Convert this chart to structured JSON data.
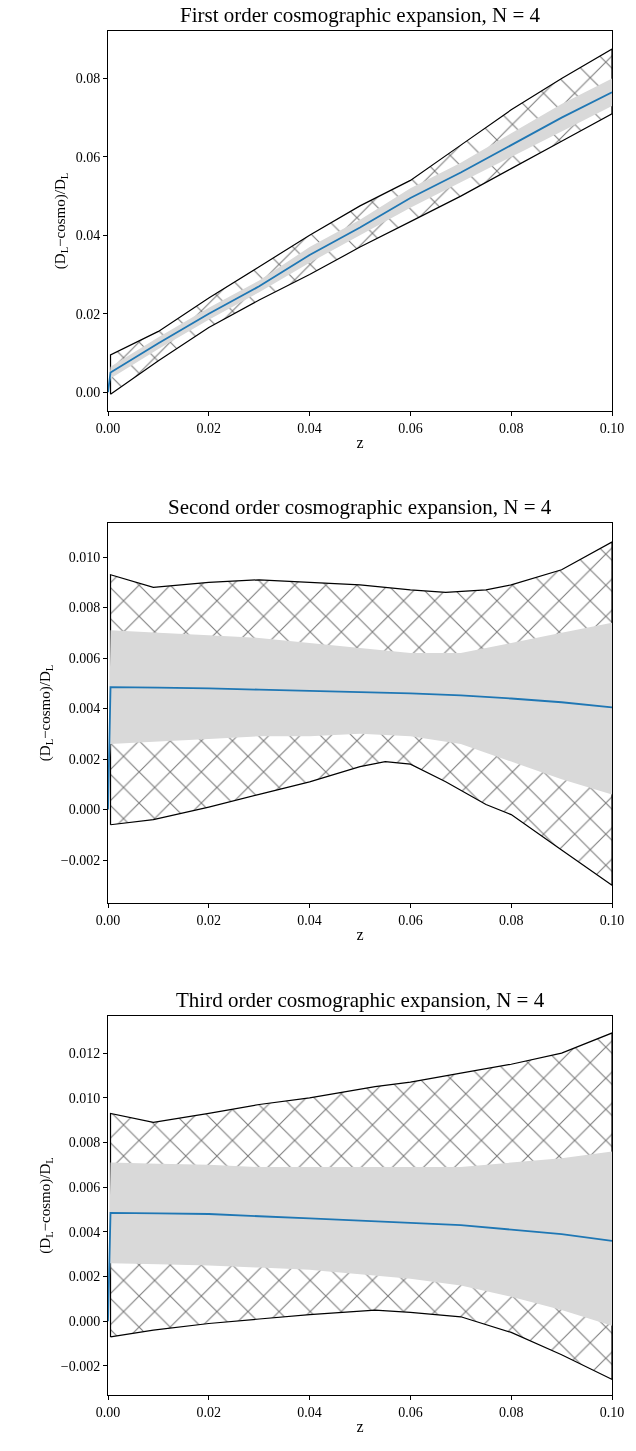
{
  "chart_data": [
    {
      "type": "line",
      "title": "First order cosmographic expansion, N = 4",
      "xlabel": "z",
      "ylabel": "(D$_{L}$−cosmo)/D$_{L}$",
      "xlim": [
        0,
        0.1
      ],
      "xticks": [
        {
          "value": 0,
          "label": "0.00"
        },
        {
          "value": 0.02,
          "label": "0.02"
        },
        {
          "value": 0.04,
          "label": "0.04"
        },
        {
          "value": 0.06,
          "label": "0.06"
        },
        {
          "value": 0.08,
          "label": "0.08"
        },
        {
          "value": 0.1,
          "label": "0.10"
        }
      ],
      "ylim": [
        -0.0048,
        0.0921
      ],
      "yticks": [
        {
          "value": 0,
          "label": "0.00"
        },
        {
          "value": 0.02,
          "label": "0.02"
        },
        {
          "value": 0.04,
          "label": "0.04"
        },
        {
          "value": 0.06,
          "label": "0.06"
        },
        {
          "value": 0.08,
          "label": "0.08"
        }
      ],
      "x": [
        0,
        0.0005,
        0.01,
        0.02,
        0.03,
        0.04,
        0.05,
        0.06,
        0.07,
        0.08,
        0.09,
        0.1
      ],
      "series": [
        {
          "type": "area",
          "color": "#000000",
          "x": [
            0.0005,
            0.01,
            0.02,
            0.03,
            0.04,
            0.05,
            0.06,
            0.07,
            0.08,
            0.09,
            0.1
          ],
          "values": [
            null,
            null,
            null,
            null,
            null,
            null,
            null,
            null,
            null,
            null,
            null
          ],
          "lower": [
            -0.0005,
            0.008,
            0.0165,
            0.0235,
            0.03,
            0.037,
            0.0435,
            0.05,
            0.057,
            0.064,
            0.071
          ],
          "upper": [
            0.0095,
            0.0155,
            0.024,
            0.032,
            0.04,
            0.0475,
            0.054,
            0.063,
            0.072,
            0.08,
            0.0875
          ]
        },
        {
          "color": "#1f77b4",
          "values": [
            0.0,
            0.005,
            0.0125,
            0.02,
            0.027,
            0.035,
            0.042,
            0.0495,
            0.056,
            0.063,
            0.07,
            0.0765
          ],
          "lower": [
            0.0,
            0.0035,
            0.011,
            0.0185,
            0.0255,
            0.033,
            0.04,
            0.047,
            0.0535,
            0.06,
            0.0665,
            0.073
          ],
          "upper": [
            0.0,
            0.0065,
            0.014,
            0.0215,
            0.0285,
            0.037,
            0.044,
            0.052,
            0.0585,
            0.066,
            0.0735,
            0.08
          ]
        }
      ]
    },
    {
      "type": "line",
      "title": "Second order cosmographic expansion, N = 4",
      "xlabel": "z",
      "ylabel": "(D$_{L}$−cosmo)/D$_{L}$",
      "xlim": [
        0,
        0.1
      ],
      "xticks": [
        {
          "value": 0,
          "label": "0.00"
        },
        {
          "value": 0.02,
          "label": "0.02"
        },
        {
          "value": 0.04,
          "label": "0.04"
        },
        {
          "value": 0.06,
          "label": "0.06"
        },
        {
          "value": 0.08,
          "label": "0.08"
        },
        {
          "value": 0.1,
          "label": "0.10"
        }
      ],
      "ylim": [
        -0.0037,
        0.01135
      ],
      "yticks": [
        {
          "value": -0.002,
          "label": "−0.002"
        },
        {
          "value": 0,
          "label": "0.000"
        },
        {
          "value": 0.002,
          "label": "0.002"
        },
        {
          "value": 0.004,
          "label": "0.004"
        },
        {
          "value": 0.006,
          "label": "0.006"
        },
        {
          "value": 0.008,
          "label": "0.008"
        },
        {
          "value": 0.01,
          "label": "0.010"
        }
      ],
      "x": [
        0,
        0.0005,
        0.01,
        0.02,
        0.03,
        0.04,
        0.05,
        0.06,
        0.07,
        0.08,
        0.09,
        0.1
      ],
      "series": [
        {
          "type": "area",
          "color": "#000000",
          "x": [
            0.0005,
            0.009,
            0.02,
            0.03,
            0.04,
            0.05,
            0.055,
            0.06,
            0.067,
            0.075,
            0.08,
            0.09,
            0.1
          ],
          "values": [
            null,
            null,
            null,
            null,
            null,
            null,
            null,
            null,
            null,
            null,
            null,
            null,
            null
          ],
          "lower": [
            -0.0006,
            -0.0004,
            0.0001,
            0.0006,
            0.0011,
            0.0017,
            0.0019,
            0.0018,
            0.0011,
            0.0002,
            -0.0002,
            -0.0016,
            -0.003
          ],
          "upper": [
            0.0093,
            0.0088,
            0.009,
            0.0091,
            0.009,
            0.0089,
            0.0088,
            0.0087,
            0.0086,
            0.0087,
            0.0089,
            0.0095,
            0.0106
          ]
        },
        {
          "color": "#1f77b4",
          "values": [
            0.0,
            0.00485,
            0.00483,
            0.0048,
            0.00475,
            0.0047,
            0.00465,
            0.0046,
            0.00452,
            0.0044,
            0.00425,
            0.00405
          ],
          "lower": [
            0.0,
            0.0026,
            0.0027,
            0.0028,
            0.0029,
            0.0029,
            0.003,
            0.0029,
            0.0026,
            0.0019,
            0.0012,
            0.0006
          ],
          "upper": [
            0.0,
            0.0071,
            0.007,
            0.0069,
            0.0068,
            0.0066,
            0.0064,
            0.0062,
            0.0062,
            0.0066,
            0.007,
            0.0074
          ]
        }
      ]
    },
    {
      "type": "line",
      "title": "Third order cosmographic expansion, N = 4",
      "xlabel": "z",
      "ylabel": "(D$_{L}$−cosmo)/D$_{L}$",
      "xlim": [
        0,
        0.1
      ],
      "xticks": [
        {
          "value": 0,
          "label": "0.00"
        },
        {
          "value": 0.02,
          "label": "0.02"
        },
        {
          "value": 0.04,
          "label": "0.04"
        },
        {
          "value": 0.06,
          "label": "0.06"
        },
        {
          "value": 0.08,
          "label": "0.08"
        },
        {
          "value": 0.1,
          "label": "0.10"
        }
      ],
      "ylim": [
        -0.0033,
        0.01366
      ],
      "yticks": [
        {
          "value": -0.002,
          "label": "−0.002"
        },
        {
          "value": 0,
          "label": "0.000"
        },
        {
          "value": 0.002,
          "label": "0.002"
        },
        {
          "value": 0.004,
          "label": "0.004"
        },
        {
          "value": 0.006,
          "label": "0.006"
        },
        {
          "value": 0.008,
          "label": "0.008"
        },
        {
          "value": 0.01,
          "label": "0.010"
        },
        {
          "value": 0.012,
          "label": "0.012"
        }
      ],
      "x": [
        0,
        0.0005,
        0.01,
        0.02,
        0.03,
        0.04,
        0.05,
        0.06,
        0.07,
        0.08,
        0.09,
        0.1
      ],
      "series": [
        {
          "type": "area",
          "color": "#000000",
          "x": [
            0.0005,
            0.009,
            0.02,
            0.03,
            0.04,
            0.053,
            0.06,
            0.07,
            0.08,
            0.09,
            0.1
          ],
          "values": [
            null,
            null,
            null,
            null,
            null,
            null,
            null,
            null,
            null,
            null,
            null
          ],
          "lower": [
            -0.0007,
            -0.0004,
            -0.0001,
            0.0001,
            0.0003,
            0.0005,
            0.0004,
            0.0002,
            -0.0005,
            -0.0015,
            -0.0026
          ],
          "upper": [
            0.0093,
            0.0089,
            0.0093,
            0.0097,
            0.01,
            0.0105,
            0.0107,
            0.0111,
            0.0115,
            0.012,
            0.0129
          ]
        },
        {
          "color": "#1f77b4",
          "values": [
            0.0,
            0.00485,
            0.00483,
            0.0048,
            0.0047,
            0.0046,
            0.0045,
            0.0044,
            0.0043,
            0.0041,
            0.0039,
            0.0036
          ],
          "lower": [
            0.0,
            0.0026,
            0.00255,
            0.0025,
            0.0024,
            0.0023,
            0.0021,
            0.0019,
            0.0016,
            0.0011,
            0.0005,
            -0.0002
          ],
          "upper": [
            0.0,
            0.0071,
            0.00705,
            0.007,
            0.0069,
            0.0069,
            0.0069,
            0.0069,
            0.0069,
            0.0071,
            0.0073,
            0.0076
          ]
        }
      ]
    }
  ]
}
